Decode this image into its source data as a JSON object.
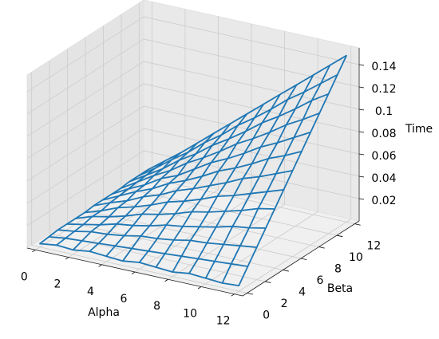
{
  "chart_data": {
    "type": "wireframe",
    "xlabel": "Alpha",
    "ylabel": "Beta",
    "zlabel": "Time",
    "color": "#1f77b4",
    "xlim": [
      -0.5,
      12.5
    ],
    "ylim": [
      -0.5,
      12.5
    ],
    "zlim": [
      0,
      0.155
    ],
    "xticks": [
      0,
      2,
      4,
      6,
      8,
      10,
      12
    ],
    "yticks": [
      0,
      2,
      4,
      6,
      8,
      10,
      12
    ],
    "zticks": [
      0.02,
      0.04,
      0.06,
      0.08,
      0.1,
      0.12,
      0.14
    ],
    "x": [
      0,
      1,
      2,
      3,
      4,
      5,
      6,
      7,
      8,
      9,
      10,
      11,
      12
    ],
    "y": [
      0,
      1,
      2,
      3,
      4,
      5,
      6,
      7,
      8,
      9,
      10,
      11,
      12
    ],
    "z": [
      [
        0.003,
        0.005,
        0.004,
        0.006,
        0.005,
        0.004,
        0.006,
        0.005,
        0.004,
        0.006,
        0.005,
        0.004,
        0.005
      ],
      [
        0.004,
        0.006,
        0.007,
        0.008,
        0.009,
        0.01,
        0.011,
        0.012,
        0.013,
        0.014,
        0.015,
        0.016,
        0.017
      ],
      [
        0.005,
        0.007,
        0.01,
        0.011,
        0.013,
        0.016,
        0.017,
        0.019,
        0.022,
        0.023,
        0.025,
        0.027,
        0.029
      ],
      [
        0.005,
        0.008,
        0.011,
        0.015,
        0.017,
        0.02,
        0.024,
        0.026,
        0.029,
        0.032,
        0.036,
        0.038,
        0.041
      ],
      [
        0.005,
        0.01,
        0.013,
        0.017,
        0.022,
        0.025,
        0.029,
        0.034,
        0.037,
        0.041,
        0.045,
        0.05,
        0.053
      ],
      [
        0.005,
        0.01,
        0.016,
        0.02,
        0.025,
        0.031,
        0.035,
        0.04,
        0.046,
        0.05,
        0.055,
        0.06,
        0.065
      ],
      [
        0.006,
        0.012,
        0.017,
        0.024,
        0.029,
        0.036,
        0.041,
        0.047,
        0.053,
        0.06,
        0.065,
        0.071,
        0.077
      ],
      [
        0.006,
        0.013,
        0.02,
        0.026,
        0.034,
        0.04,
        0.047,
        0.055,
        0.061,
        0.068,
        0.076,
        0.082,
        0.089
      ],
      [
        0.006,
        0.014,
        0.021,
        0.03,
        0.036,
        0.045,
        0.054,
        0.061,
        0.069,
        0.078,
        0.085,
        0.093,
        0.101
      ],
      [
        0.006,
        0.015,
        0.024,
        0.032,
        0.042,
        0.05,
        0.059,
        0.069,
        0.077,
        0.086,
        0.096,
        0.104,
        0.113
      ],
      [
        0.007,
        0.016,
        0.025,
        0.036,
        0.045,
        0.056,
        0.065,
        0.075,
        0.086,
        0.095,
        0.105,
        0.116,
        0.125
      ],
      [
        0.007,
        0.017,
        0.028,
        0.038,
        0.05,
        0.06,
        0.072,
        0.082,
        0.093,
        0.105,
        0.115,
        0.126,
        0.137
      ],
      [
        0.007,
        0.018,
        0.029,
        0.041,
        0.053,
        0.065,
        0.077,
        0.089,
        0.101,
        0.113,
        0.125,
        0.137,
        0.149
      ]
    ]
  }
}
